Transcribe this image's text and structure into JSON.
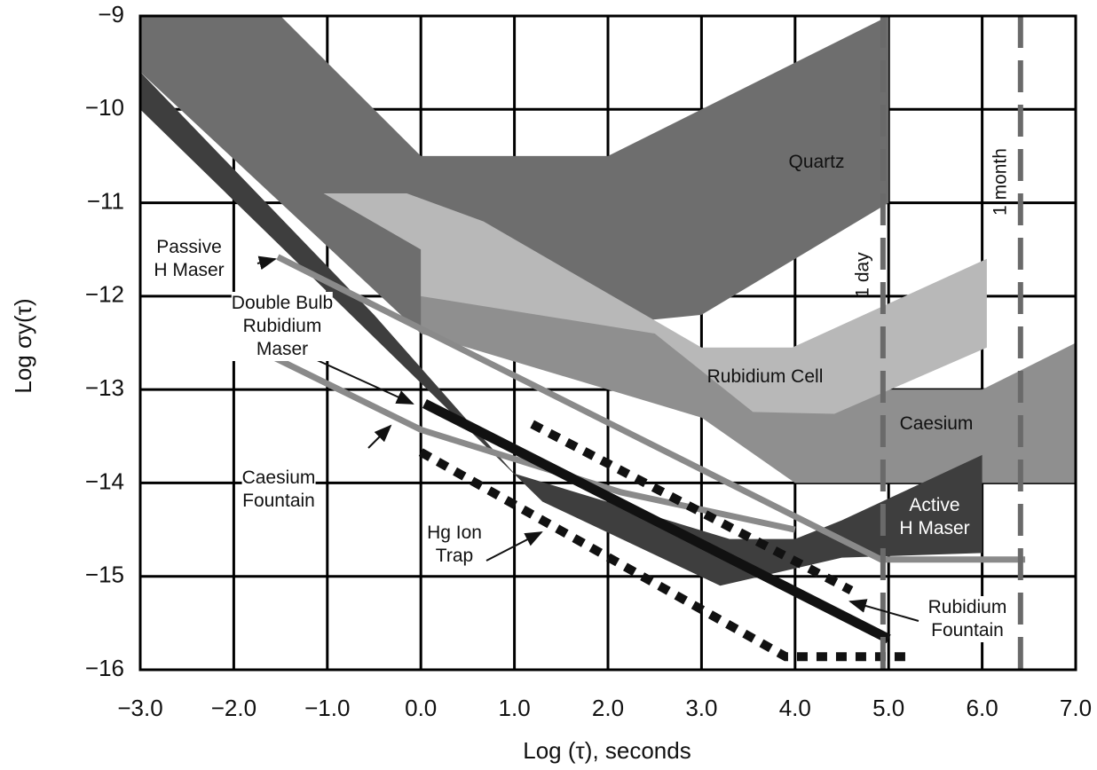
{
  "chart_data": {
    "type": "line",
    "xlabel": "Log (τ), seconds",
    "ylabel": "Log σy(τ)",
    "xlim": [
      -3,
      7
    ],
    "ylim": [
      -16,
      -9
    ],
    "xticks": [
      {
        "value": -3,
        "label": "−3.0"
      },
      {
        "value": -2,
        "label": "−2.0"
      },
      {
        "value": -1,
        "label": "−1.0"
      },
      {
        "value": 0,
        "label": "0.0"
      },
      {
        "value": 1,
        "label": "1.0"
      },
      {
        "value": 2,
        "label": "2.0"
      },
      {
        "value": 3,
        "label": "3.0"
      },
      {
        "value": 4,
        "label": "4.0"
      },
      {
        "value": 5,
        "label": "5.0"
      },
      {
        "value": 6,
        "label": "6.0"
      },
      {
        "value": 7,
        "label": "7.0"
      }
    ],
    "yticks": [
      {
        "value": -9,
        "label": "−9"
      },
      {
        "value": -10,
        "label": "−10"
      },
      {
        "value": -11,
        "label": "−11"
      },
      {
        "value": -12,
        "label": "−12"
      },
      {
        "value": -13,
        "label": "−13"
      },
      {
        "value": -14,
        "label": "−14"
      },
      {
        "value": -15,
        "label": "−15"
      },
      {
        "value": -16,
        "label": "−16"
      }
    ],
    "grid": true,
    "series": [
      {
        "name": "Quartz",
        "shape": "polygon",
        "color": "#6e6e6e",
        "x": [
          -3,
          -1.5,
          0,
          2,
          5,
          5,
          3,
          1,
          0,
          -3
        ],
        "values": [
          -9,
          -9,
          -10.5,
          -10.5,
          -9,
          -11,
          -12.2,
          -12.4,
          -12.4,
          -9.6
        ]
      },
      {
        "name": "Caesium",
        "shape": "polygon",
        "color": "#8f8f8f",
        "x": [
          0,
          1,
          3,
          4,
          6,
          7,
          7,
          4,
          3,
          0
        ],
        "values": [
          -11.4,
          -11.6,
          -12.6,
          -13,
          -13,
          -12.5,
          -14,
          -14,
          -13.3,
          -12.4
        ]
      },
      {
        "name": "Rubidium Cell",
        "shape": "polygon",
        "color": "#b8b8b8",
        "x": [
          -1.04,
          -0.15,
          0.67,
          3,
          3.97,
          6.05,
          6.05,
          4.42,
          3.55,
          2.5,
          0,
          0,
          -1.04
        ],
        "values": [
          -10.9,
          -10.9,
          -11.2,
          -12.55,
          -12.55,
          -11.6,
          -12.55,
          -13.26,
          -13.24,
          -12.4,
          -12,
          -11.5,
          -10.9
        ]
      },
      {
        "name": "Active\nH Maser",
        "shape": "polygon",
        "color": "#3e3e3e",
        "x": [
          -3,
          -0.5,
          1,
          3.3,
          4,
          4.5,
          6,
          6,
          4.5,
          3.2,
          1.3,
          -3
        ],
        "values": [
          -9.6,
          -12.2,
          -13.9,
          -14.6,
          -14.6,
          -14.4,
          -13.7,
          -14.75,
          -14.8,
          -15.1,
          -14.2,
          -10
        ]
      },
      {
        "name": "Passive\nH Maser",
        "shape": "line",
        "color": "#8a8a8a",
        "x": [
          -1.53,
          4.92,
          6.46
        ],
        "values": [
          -11.58,
          -14.82,
          -14.82
        ]
      },
      {
        "name": "Double Bulb\nRubidium\nMaser",
        "shape": "line",
        "color": "#8a8a8a",
        "x": [
          -2.01,
          0,
          2.14,
          4
        ],
        "values": [
          -12.44,
          -13.43,
          -14.1,
          -14.5
        ]
      },
      {
        "name": "Caesium\nFountain",
        "shape": "line",
        "color": "#111111",
        "x": [
          0.04,
          5
        ],
        "values": [
          -13.15,
          -15.67
        ]
      },
      {
        "name": "Hg Ion\nTrap",
        "shape": "dotted",
        "color": "#111111",
        "x": [
          0,
          3.9,
          5.27
        ],
        "values": [
          -13.67,
          -15.86,
          -15.86
        ]
      },
      {
        "name": "Rubidium\nFountain",
        "shape": "dotted",
        "color": "#111111",
        "x": [
          1.19,
          4.6
        ],
        "values": [
          -13.37,
          -15.15
        ]
      }
    ],
    "markers": [
      {
        "x": 4.94,
        "label": "1 day"
      },
      {
        "x": 6.41,
        "label": "1 month"
      }
    ]
  }
}
